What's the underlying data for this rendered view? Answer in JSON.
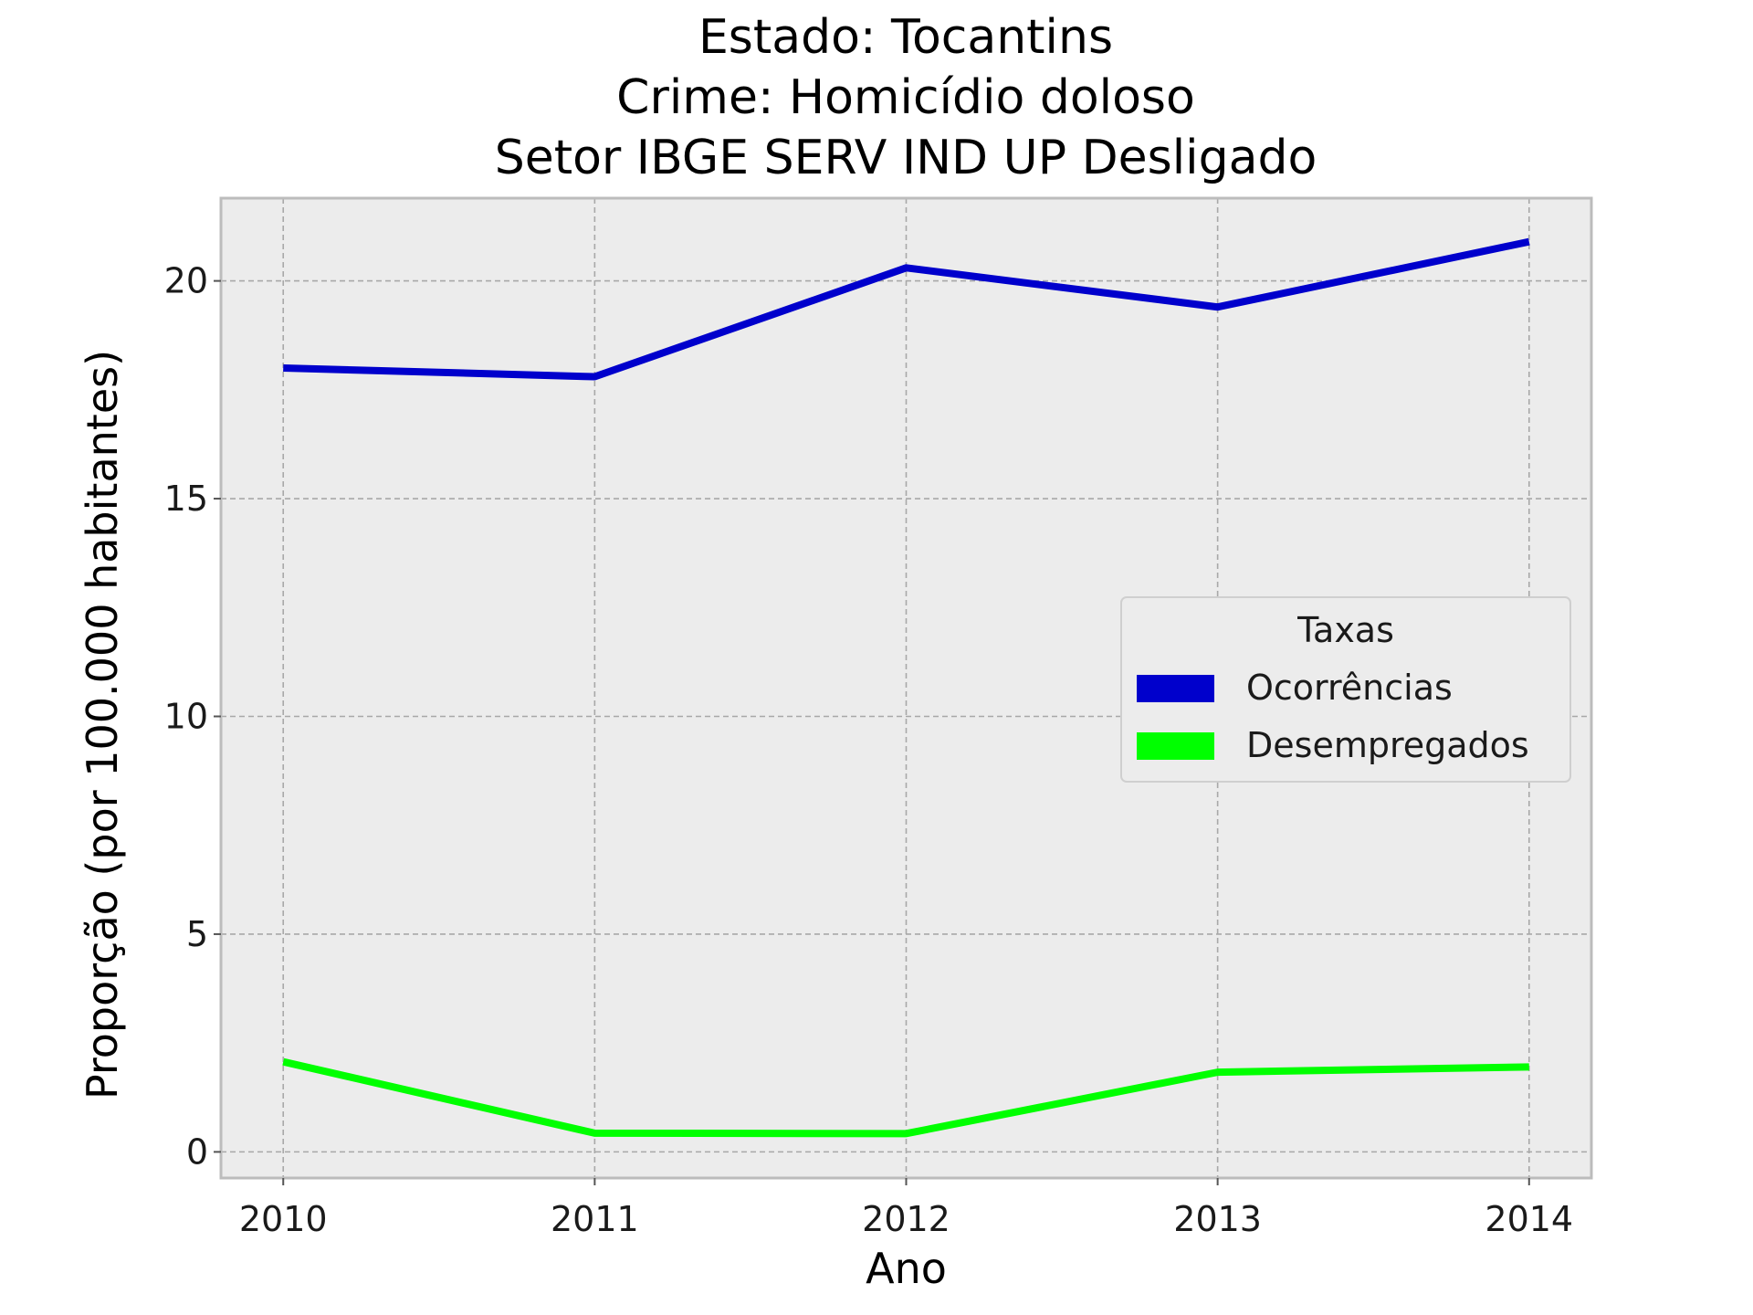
{
  "chart_data": {
    "type": "line",
    "title_lines": [
      "Estado: Tocantins",
      "Crime: Homicídio doloso",
      "Setor IBGE  SERV IND UP   Desligado"
    ],
    "xlabel": "Ano",
    "ylabel": "Proporção (por 100.000 habitantes)",
    "x": [
      2010,
      2011,
      2012,
      2013,
      2014
    ],
    "x_tick_labels": [
      "2010",
      "2011",
      "2012",
      "2013",
      "2014"
    ],
    "y_ticks": [
      0,
      5,
      10,
      15,
      20
    ],
    "y_tick_labels": [
      "0",
      "5",
      "10",
      "15",
      "20"
    ],
    "xlim": [
      2009.8,
      2014.2
    ],
    "ylim": [
      -0.6,
      21.9
    ],
    "grid": true,
    "legend": {
      "title": "Taxas",
      "placement": "center-right"
    },
    "series": [
      {
        "name": "Ocorrências",
        "color": "#0000cc",
        "values": [
          18.0,
          17.8,
          20.3,
          19.4,
          20.9
        ]
      },
      {
        "name": "Desempregados",
        "color": "#00ff00",
        "values": [
          2.07,
          0.43,
          0.42,
          1.83,
          1.95
        ]
      }
    ],
    "colors": {
      "plot_background": "#ececec",
      "grid": "#a8a8a8",
      "frame": "#bcbcbc"
    }
  }
}
